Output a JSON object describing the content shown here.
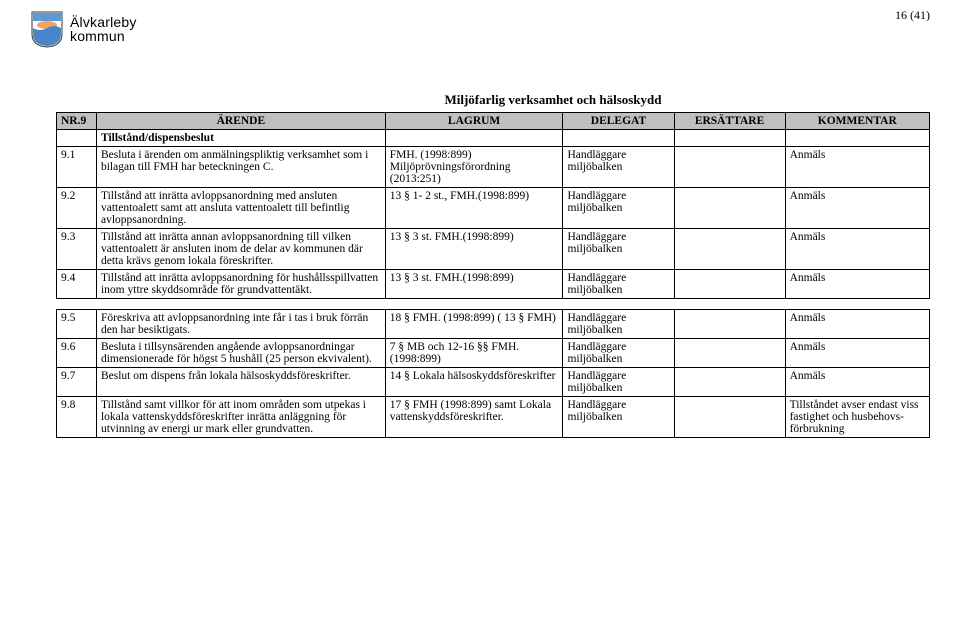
{
  "page_number": "16 (41)",
  "logo": {
    "line1": "Älvkarleby",
    "line2": "kommun",
    "shield_bg": "#ffffff",
    "shield_top": "#5b9bd5",
    "shield_mid": "#f4a460",
    "shield_bottom": "#4a86c7"
  },
  "title": "Miljöfarlig verksamhet och hälsoskydd",
  "headers": {
    "nr": "NR.9",
    "arende": "ÄRENDE",
    "lagrum": "LAGRUM",
    "delegat": "DELEGAT",
    "ersattare": "ERSÄTTARE",
    "kommentar": "KOMMENTAR"
  },
  "subheader": "Tillstånd/dispensbeslut",
  "rows": [
    {
      "nr": "9.1",
      "arende": "Besluta i ärenden om anmälningspliktig verksamhet som i bilagan till FMH har beteckningen C.",
      "lagrum": "FMH. (1998:899) Miljöprövningsförordning (2013:251)",
      "delegat": "Handläggare miljöbalken",
      "ersattare": "",
      "kommentar": "Anmäls"
    },
    {
      "nr": "9.2",
      "arende": "Tillstånd att inrätta avloppsanordning med ansluten vattentoalett samt att ansluta vattentoalett till befintlig avloppsanordning.",
      "lagrum": "13 § 1- 2 st., FMH.(1998:899)",
      "delegat": "Handläggare miljöbalken",
      "ersattare": "",
      "kommentar": "Anmäls"
    },
    {
      "nr": "9.3",
      "arende": "Tillstånd att inrätta annan avloppsanordning till vilken vattentoalett är ansluten inom de delar av kommunen där detta krävs genom lokala föreskrifter.",
      "lagrum": "13 § 3 st. FMH.(1998:899)",
      "delegat": "Handläggare miljöbalken",
      "ersattare": "",
      "kommentar": "Anmäls"
    },
    {
      "nr": "9.4",
      "arende": "Tillstånd att inrätta avloppsanordning för hushållsspillvatten inom yttre skyddsområde för grundvattentäkt.",
      "lagrum": "13 § 3 st. FMH.(1998:899)",
      "delegat": "Handläggare miljöbalken",
      "ersattare": "",
      "kommentar": "Anmäls"
    }
  ],
  "rows2": [
    {
      "nr": "9.5",
      "arende": "Föreskriva att avloppsanordning inte får i tas i bruk förrän den har besiktigats.",
      "lagrum": "18 § FMH. (1998:899) ( 13 § FMH)",
      "delegat": "Handläggare miljöbalken",
      "ersattare": "",
      "kommentar": "Anmäls"
    },
    {
      "nr": "9.6",
      "arende": "Besluta i tillsynsärenden angående avloppsanordningar dimensionerade för högst 5 hushåll (25 person ekvivalent).",
      "lagrum": "7 § MB och 12-16 §§ FMH. (1998:899)",
      "delegat": "Handläggare miljöbalken",
      "ersattare": "",
      "kommentar": "Anmäls"
    },
    {
      "nr": "9.7",
      "arende": "Beslut om dispens från lokala hälsoskyddsföreskrifter.",
      "lagrum": "14 § Lokala hälsoskyddsföreskrifter",
      "delegat": "Handläggare miljöbalken",
      "ersattare": "",
      "kommentar": "Anmäls"
    },
    {
      "nr": "9.8",
      "arende": "Tillstånd samt villkor för att inom områden som utpekas i lokala vattenskyddsföreskrifter inrätta anläggning för utvinning av energi ur mark eller grundvatten.",
      "lagrum": "17 § FMH (1998:899) samt Lokala vattenskyddsföreskrifter.",
      "delegat": "Handläggare miljöbalken",
      "ersattare": "",
      "kommentar": "Tillståndet avser endast viss fastighet och husbehovs-förbrukning"
    }
  ],
  "styling": {
    "header_bg": "#bfbfbf",
    "border_color": "#000000",
    "text_color": "#000000",
    "body_font_size": 11.5,
    "title_font_size": 13,
    "page_bg": "#ffffff"
  }
}
